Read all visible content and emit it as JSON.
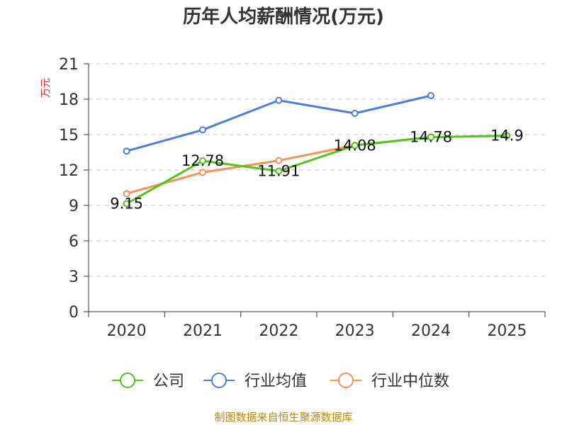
{
  "chart_data": {
    "type": "line",
    "title": "历年人均薪酬情况(万元)",
    "ylabel": "万元",
    "xlabel": "",
    "categories": [
      "2020",
      "2021",
      "2022",
      "2023",
      "2024",
      "2025"
    ],
    "ylim": [
      0,
      21
    ],
    "yticks": [
      0,
      3,
      6,
      9,
      12,
      15,
      18,
      21
    ],
    "grid": true,
    "legend_position": "bottom",
    "series": [
      {
        "name": "公司",
        "color": "#52c41a",
        "values": [
          9.15,
          12.78,
          11.91,
          14.08,
          14.78,
          14.9
        ],
        "labels": [
          "9.15",
          "12.78",
          "11.91",
          "14.08",
          "14.78",
          "14.9"
        ]
      },
      {
        "name": "行业均值",
        "color": "#4a7fdc",
        "values": [
          13.6,
          15.4,
          17.9,
          16.8,
          18.3,
          null
        ]
      },
      {
        "name": "行业中位数",
        "color": "#f79256",
        "values": [
          10.0,
          11.8,
          12.8,
          14.1,
          14.8,
          null
        ]
      }
    ],
    "source": "制图数据来自恒生聚源数据库"
  }
}
